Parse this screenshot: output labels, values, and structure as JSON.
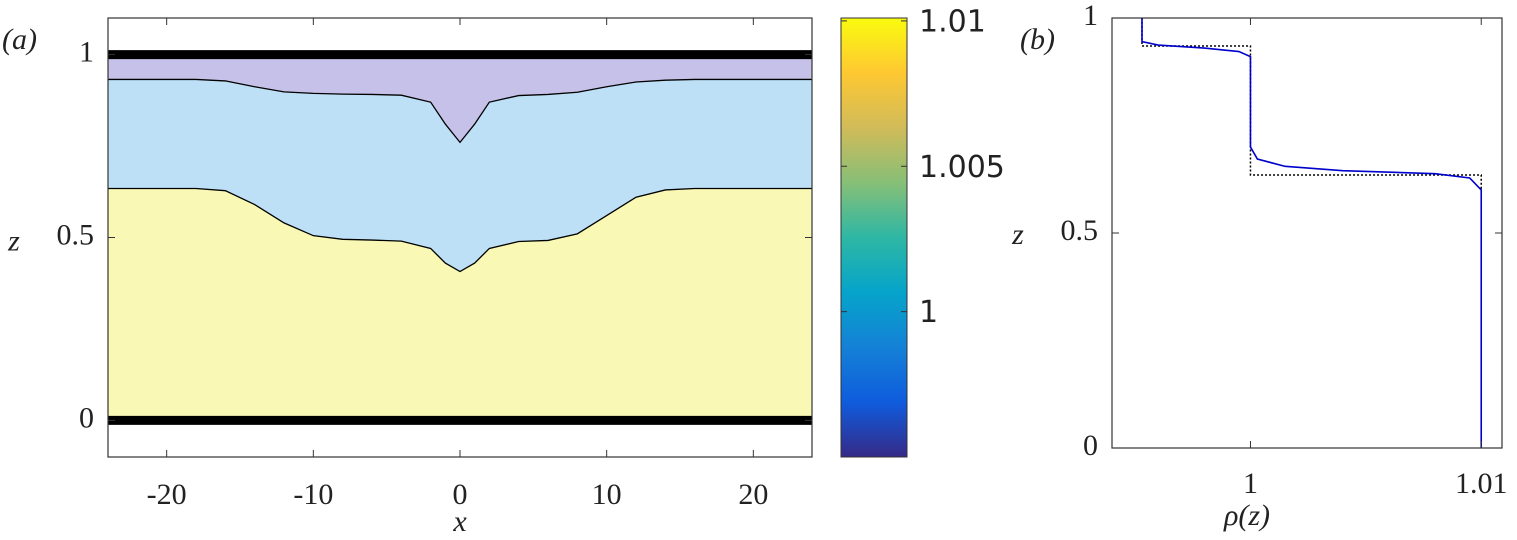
{
  "chart_data": [
    {
      "type": "field",
      "panel_label": "(a)",
      "x_label": "x",
      "y_label": "z",
      "xlim": [
        -24,
        24
      ],
      "ylim": [
        -0.1,
        1.1
      ],
      "xticks": [
        -20,
        -10,
        0,
        10,
        20
      ],
      "yticks": [
        0,
        0.5,
        1
      ],
      "walls": [
        0,
        1
      ],
      "layer_colors": [
        "#f9f9b5",
        "#bde0f6",
        "#c6c1e8"
      ],
      "x": [
        -24,
        -18,
        -16,
        -14,
        -12,
        -10,
        -8,
        -6,
        -4,
        -2,
        -1,
        0,
        1,
        2,
        4,
        6,
        8,
        10,
        12,
        14,
        16,
        18,
        24
      ],
      "series": [
        {
          "color": "#000000",
          "values": [
            0.634,
            0.634,
            0.628,
            0.59,
            0.54,
            0.505,
            0.495,
            0.493,
            0.49,
            0.47,
            0.43,
            0.407,
            0.43,
            0.47,
            0.489,
            0.492,
            0.51,
            0.56,
            0.61,
            0.63,
            0.634,
            0.634,
            0.634
          ]
        },
        {
          "color": "#000000",
          "values": [
            0.932,
            0.932,
            0.928,
            0.912,
            0.898,
            0.894,
            0.892,
            0.891,
            0.889,
            0.87,
            0.81,
            0.76,
            0.81,
            0.87,
            0.888,
            0.891,
            0.897,
            0.912,
            0.925,
            0.93,
            0.932,
            0.932,
            0.932
          ]
        }
      ],
      "colorbar": {
        "lim": [
          0.995,
          1.0101
        ],
        "ticks": [
          1,
          1.005,
          1.01
        ],
        "colors": [
          "#352a87",
          "#0f5cdd",
          "#1481d6",
          "#06a4ca",
          "#2eb7a4",
          "#87bf77",
          "#d1bb59",
          "#fec832",
          "#f9fb0e"
        ]
      }
    },
    {
      "type": "profile",
      "panel_label": "(b)",
      "x_label": "ρ(z)",
      "y_label": "z",
      "xlim": [
        0.994,
        1.0109
      ],
      "ylim": [
        0,
        1
      ],
      "xticks": [
        1,
        1.01
      ],
      "yticks": [
        0,
        0.5,
        1
      ],
      "series": [
        {
          "color": "#000000",
          "dash": true,
          "x": [
            0.9953,
            0.9953,
            1.0,
            1.0,
            1.01,
            1.01
          ],
          "values": [
            1.0,
            0.935,
            0.935,
            0.635,
            0.635,
            0.0
          ]
        },
        {
          "color": "#0000cc",
          "dash": false,
          "x": [
            0.9953,
            0.9953,
            0.996,
            0.998,
            0.9995,
            1.0,
            1.0,
            1.0003,
            1.0015,
            1.004,
            1.008,
            1.0095,
            1.01,
            1.01
          ],
          "values": [
            1.0,
            0.945,
            0.937,
            0.93,
            0.922,
            0.91,
            0.7,
            0.672,
            0.655,
            0.645,
            0.638,
            0.628,
            0.6,
            0.0
          ]
        }
      ]
    }
  ]
}
